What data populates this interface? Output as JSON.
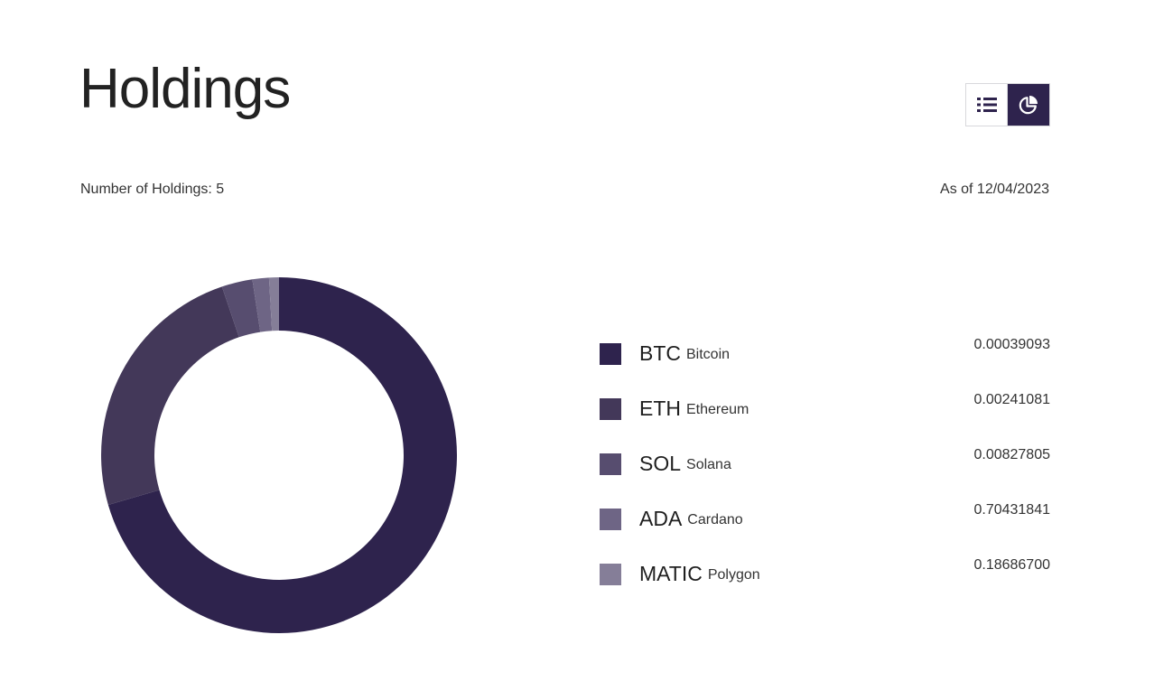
{
  "page": {
    "title": "Holdings",
    "holdings_count_label": "Number of Holdings: 5",
    "as_of_label": "As of 12/04/2023"
  },
  "view_toggle": {
    "list_icon": "list-icon",
    "chart_icon": "pie-chart-icon",
    "active": "chart"
  },
  "colors": {
    "accent": "#2e234d",
    "btc": "#2e234d",
    "eth": "#433859",
    "sol": "#574d6f",
    "ada": "#6e6585",
    "matic": "#857e98"
  },
  "holdings": [
    {
      "symbol": "BTC",
      "name": "Bitcoin",
      "amount": "0.00039093"
    },
    {
      "symbol": "ETH",
      "name": "Ethereum",
      "amount": "0.00241081"
    },
    {
      "symbol": "SOL",
      "name": "Solana",
      "amount": "0.00827805"
    },
    {
      "symbol": "ADA",
      "name": "Cardano",
      "amount": "0.70431841"
    },
    {
      "symbol": "MATIC",
      "name": "Polygon",
      "amount": "0.18686700"
    }
  ],
  "chart_data": {
    "type": "pie",
    "categories": [
      "BTC",
      "ETH",
      "SOL",
      "ADA",
      "MATIC"
    ],
    "values": [
      70.5,
      24.3,
      2.8,
      1.5,
      0.9
    ]
  }
}
